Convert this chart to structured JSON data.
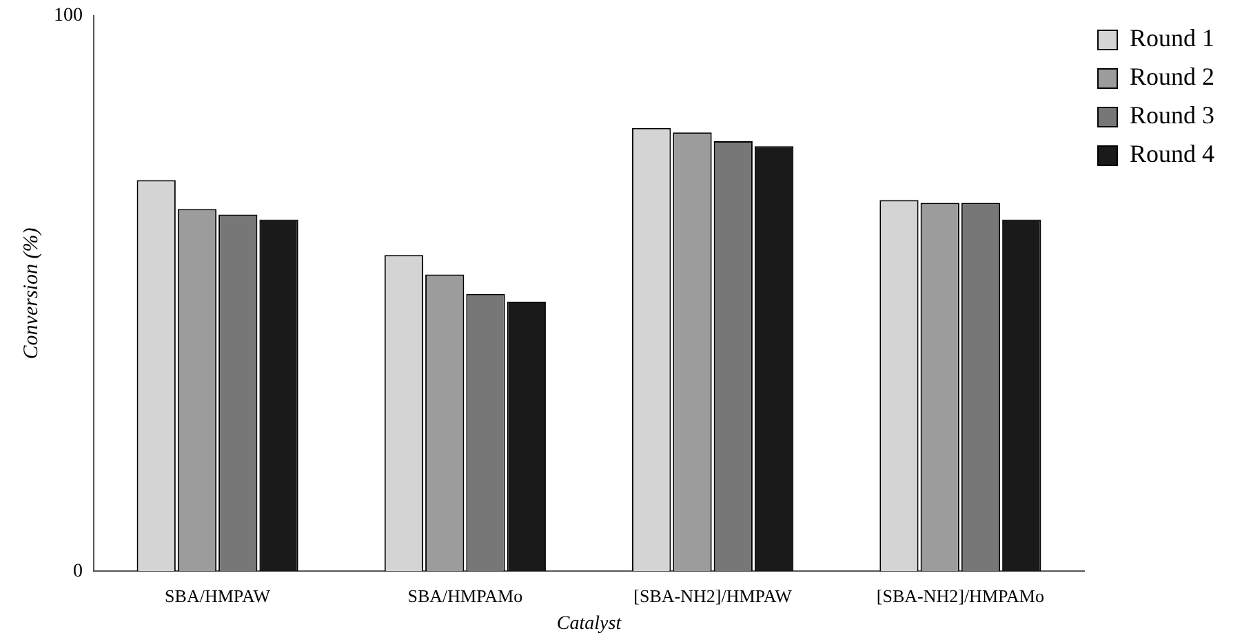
{
  "chart_data": {
    "type": "bar",
    "xlabel": "Catalyst",
    "ylabel": "Conversion (%)",
    "categories": [
      "SBA/HMPAW",
      "SBA/HMPAMo",
      "[SBA-NH2]/HMPAW",
      "[SBA-NH2]/HMPAMo"
    ],
    "series": [
      {
        "name": "Round 1",
        "color": "#d4d4d4",
        "values": [
          70.4,
          56.9,
          79.8,
          66.8
        ]
      },
      {
        "name": "Round 2",
        "color": "#9c9c9c",
        "values": [
          65.2,
          53.4,
          79.0,
          66.3
        ]
      },
      {
        "name": "Round 3",
        "color": "#777777",
        "values": [
          64.2,
          49.9,
          77.4,
          66.3
        ]
      },
      {
        "name": "Round 4",
        "color": "#1a1a1a",
        "values": [
          63.3,
          48.5,
          76.5,
          63.3
        ]
      }
    ],
    "ylim": [
      0,
      100
    ],
    "yticks": [
      0,
      100
    ],
    "grid": false,
    "legend": "top right"
  }
}
